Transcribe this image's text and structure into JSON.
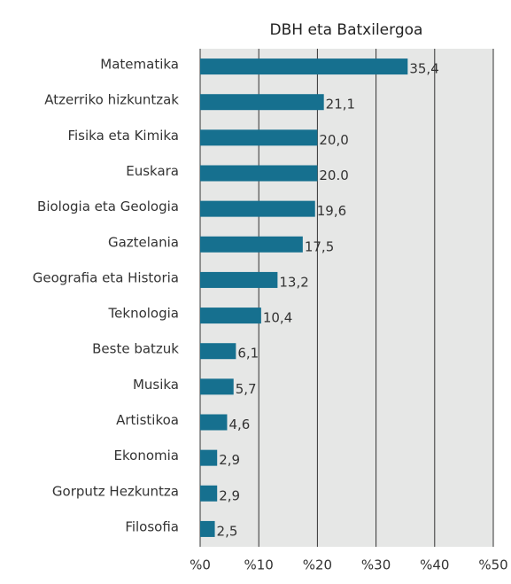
{
  "chart_data": {
    "type": "bar",
    "orientation": "horizontal",
    "title": "DBH eta Batxilergoa",
    "categories": [
      "Matematika",
      "Atzerriko hizkuntzak",
      "Fisika eta Kimika",
      "Euskara",
      "Biologia eta Geologia",
      "Gaztelania",
      "Geografia eta Historia",
      "Teknologia",
      "Beste batzuk",
      "Musika",
      "Artistikoa",
      "Ekonomia",
      "Gorputz Hezkuntza",
      "Filosofia"
    ],
    "values": [
      35.4,
      21.1,
      20.0,
      20.0,
      19.6,
      17.5,
      13.2,
      10.4,
      6.1,
      5.7,
      4.6,
      2.9,
      2.9,
      2.5
    ],
    "value_labels": [
      "35,4",
      "21,1",
      "20,0",
      "20.0",
      "19,6",
      "17,5",
      "13,2",
      "10,4",
      "6,1",
      "5,7",
      "4,6",
      "2,9",
      "2,9",
      "2,5"
    ],
    "color": "#16708f",
    "xlim": [
      0,
      50
    ],
    "xticks": [
      {
        "value": 0,
        "label": "%0"
      },
      {
        "value": 10,
        "label": "%10"
      },
      {
        "value": 20,
        "label": "%20"
      },
      {
        "value": 30,
        "label": "%30"
      },
      {
        "value": 40,
        "label": "%40"
      },
      {
        "value": 50,
        "label": "%50"
      }
    ],
    "grid": true
  }
}
